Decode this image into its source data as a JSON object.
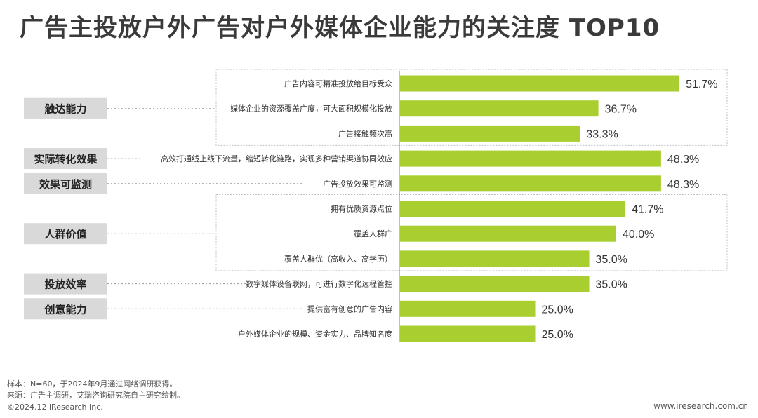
{
  "title": "广告主投放户外广告对户外媒体企业能力的关注度 TOP10",
  "colors": {
    "bar": "#a8cf2f",
    "category_box": "#d9d9d9",
    "group_border": "#bfbfbf",
    "axis": "#7f7f7f"
  },
  "chart_data": {
    "type": "bar",
    "orientation": "horizontal",
    "title": "广告主投放户外广告对户外媒体企业能力的关注度 TOP10",
    "categories": [
      "广告内容可精准投放给目标受众",
      "媒体企业的资源覆盖广度，可大面积规模化投放",
      "广告接触频次高",
      "高效打通线上线下流量，缩短转化链路，实现多种营销渠道协同效应",
      "广告投放效果可监测",
      "拥有优质资源点位",
      "覆盖人群广",
      "覆盖人群优（高收入、高学历）",
      "数字媒体设备联网，可进行数字化远程管控",
      "提供富有创意的广告内容",
      "户外媒体企业的规模、资金实力、品牌知名度"
    ],
    "values": [
      51.7,
      36.7,
      33.3,
      48.3,
      48.3,
      41.7,
      40.0,
      35.0,
      35.0,
      25.0,
      25.0
    ],
    "value_labels": [
      "51.7%",
      "36.7%",
      "33.3%",
      "48.3%",
      "48.3%",
      "41.7%",
      "40.0%",
      "35.0%",
      "35.0%",
      "25.0%",
      "25.0%"
    ],
    "groups": [
      {
        "label": "触达能力",
        "rows": [
          0,
          1,
          2
        ],
        "boxed": true
      },
      {
        "label": "实际转化效果",
        "rows": [
          3
        ],
        "boxed": false
      },
      {
        "label": "效果可监测",
        "rows": [
          4
        ],
        "boxed": false
      },
      {
        "label": "人群价值",
        "rows": [
          5,
          6,
          7
        ],
        "boxed": true
      },
      {
        "label": "投放效率",
        "rows": [
          8
        ],
        "boxed": false
      },
      {
        "label": "创意能力",
        "rows": [
          9
        ],
        "boxed": false
      }
    ],
    "xlim": [
      0,
      60
    ],
    "grid": false,
    "legend": "none"
  },
  "footer": {
    "sample": "样本：N=60，于2024年9月通过网络调研获得。",
    "source": "来源：广告主调研，艾瑞咨询研究院自主研究绘制。",
    "copyright": "©2024.12 iResearch Inc.",
    "website": "www.iresearch.com.cn"
  }
}
